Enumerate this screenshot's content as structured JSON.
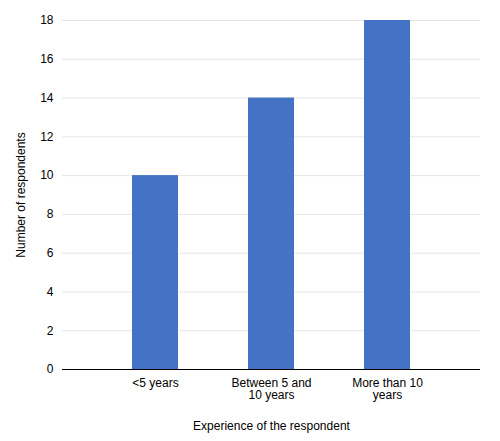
{
  "chart_data": {
    "type": "bar",
    "categories": [
      "<5 years",
      "Between 5 and\n10 years",
      "More than 10\nyears"
    ],
    "values": [
      10,
      14,
      18
    ],
    "color": "#4472C4",
    "xlabel": "Experience of the respondent",
    "ylabel": "Number of respondents",
    "ylim": [
      0,
      18
    ],
    "yticks": [
      0,
      2,
      4,
      6,
      8,
      10,
      12,
      14,
      16,
      18
    ],
    "grid": true
  }
}
